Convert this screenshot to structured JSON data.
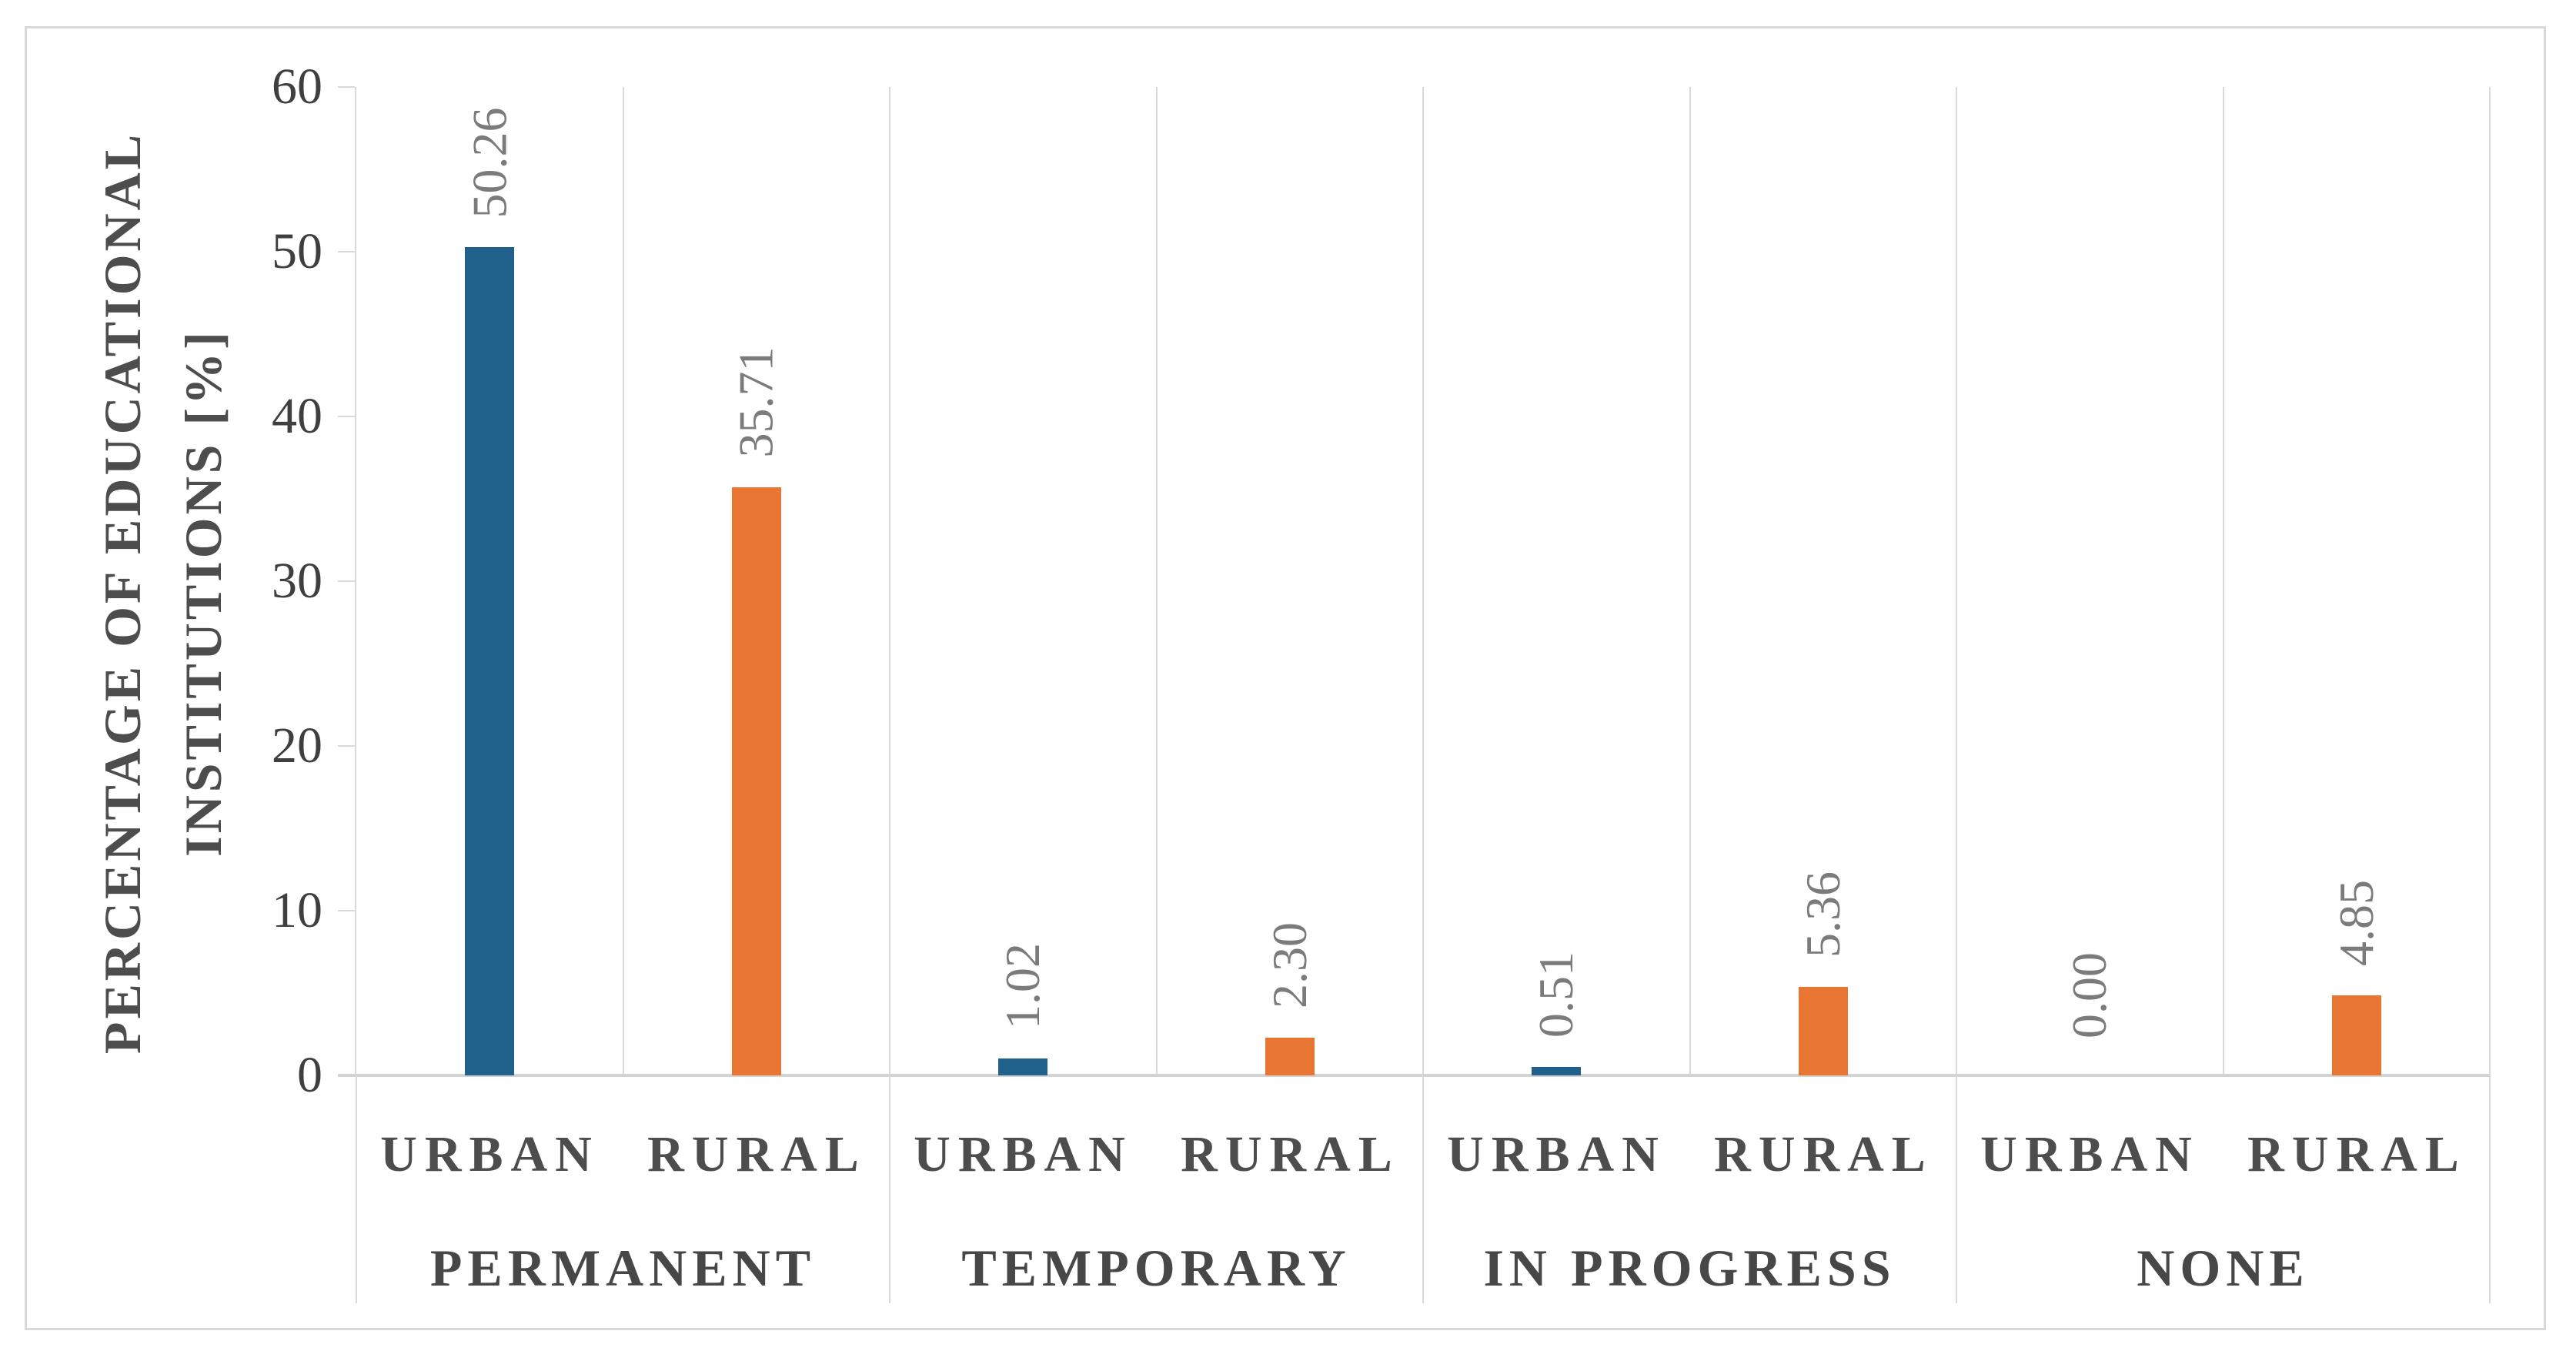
{
  "chart_data": {
    "type": "bar",
    "title": "",
    "ylabel_line1": "PERCENTAGE OF EDUCATIONAL",
    "ylabel_line2": "INSTITUTIONS [%]",
    "ylim": [
      0,
      60
    ],
    "yticks": [
      "0",
      "10",
      "20",
      "30",
      "40",
      "50",
      "60"
    ],
    "groups": [
      "PERMANENT",
      "TEMPORARY",
      "IN PROGRESS",
      "NONE"
    ],
    "sub_categories": [
      "URBAN",
      "RURAL"
    ],
    "points": [
      {
        "group": "PERMANENT",
        "category": "URBAN",
        "value": 50.26,
        "label": "50.26",
        "series": "urban"
      },
      {
        "group": "PERMANENT",
        "category": "RURAL",
        "value": 35.71,
        "label": "35.71",
        "series": "rural"
      },
      {
        "group": "TEMPORARY",
        "category": "URBAN",
        "value": 1.02,
        "label": "1.02",
        "series": "urban"
      },
      {
        "group": "TEMPORARY",
        "category": "RURAL",
        "value": 2.3,
        "label": "2.30",
        "series": "rural"
      },
      {
        "group": "IN PROGRESS",
        "category": "URBAN",
        "value": 0.51,
        "label": "0.51",
        "series": "urban"
      },
      {
        "group": "IN PROGRESS",
        "category": "RURAL",
        "value": 5.36,
        "label": "5.36",
        "series": "rural"
      },
      {
        "group": "NONE",
        "category": "URBAN",
        "value": 0.0,
        "label": "0.00",
        "series": "urban"
      },
      {
        "group": "NONE",
        "category": "RURAL",
        "value": 4.85,
        "label": "4.85",
        "series": "rural"
      }
    ],
    "colors": {
      "urban_bar": "#20618C",
      "rural_bar": "#E87531",
      "gridline": "#D9D9D9",
      "axis_line": "#D3D3D3",
      "tick_label": "#3F3F3F",
      "data_label": "#7B7B7B",
      "category_label": "#4D4D4D",
      "group_label": "#474747",
      "axis_title": "#4D4D4D"
    },
    "legend_position": "none",
    "grid": "vertical column separators; group separators extend through category label rows"
  }
}
